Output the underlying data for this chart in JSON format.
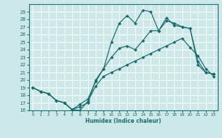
{
  "xlabel": "Humidex (Indice chaleur)",
  "background_color": "#cce8e8",
  "grid_color": "#ffffff",
  "line_color": "#1a6b6b",
  "xlim": [
    -0.5,
    23.5
  ],
  "ylim": [
    16,
    30
  ],
  "xticks": [
    0,
    1,
    2,
    3,
    4,
    5,
    6,
    7,
    8,
    9,
    10,
    11,
    12,
    13,
    14,
    15,
    16,
    17,
    18,
    19,
    20,
    21,
    22,
    23
  ],
  "yticks": [
    16,
    17,
    18,
    19,
    20,
    21,
    22,
    23,
    24,
    25,
    26,
    27,
    28,
    29
  ],
  "line1_x": [
    0,
    1,
    2,
    3,
    4,
    5,
    6,
    7,
    8,
    9,
    10,
    11,
    12,
    13,
    14,
    15,
    16,
    17,
    18,
    19,
    20,
    21,
    22,
    23
  ],
  "line1_y": [
    19.0,
    18.5,
    18.2,
    17.3,
    17.0,
    16.1,
    16.0,
    17.2,
    19.2,
    20.5,
    21.0,
    21.5,
    22.0,
    22.5,
    23.0,
    23.5,
    24.0,
    24.5,
    25.0,
    25.5,
    24.3,
    23.2,
    21.5,
    20.5
  ],
  "line2_x": [
    0,
    1,
    2,
    3,
    4,
    5,
    6,
    7,
    8,
    9,
    10,
    11,
    12,
    13,
    14,
    15,
    16,
    17,
    18,
    19,
    20,
    21,
    22,
    23
  ],
  "line2_y": [
    19.0,
    18.5,
    18.2,
    17.3,
    17.0,
    16.1,
    16.8,
    17.5,
    19.8,
    21.5,
    23.0,
    24.2,
    24.5,
    24.0,
    25.2,
    26.5,
    26.5,
    27.8,
    27.5,
    27.0,
    26.8,
    22.5,
    21.0,
    20.8
  ],
  "line3_x": [
    0,
    1,
    2,
    3,
    4,
    5,
    6,
    7,
    8,
    9,
    10,
    11,
    12,
    13,
    14,
    15,
    16,
    17,
    18,
    19,
    20,
    21,
    22,
    23
  ],
  "line3_y": [
    19.0,
    18.5,
    18.2,
    17.3,
    17.0,
    16.1,
    16.5,
    17.0,
    20.0,
    21.5,
    25.0,
    27.5,
    28.5,
    27.5,
    29.2,
    29.0,
    26.5,
    28.2,
    27.2,
    27.0,
    26.8,
    22.0,
    21.0,
    20.8
  ],
  "markersize": 2.5,
  "linewidth": 0.9
}
